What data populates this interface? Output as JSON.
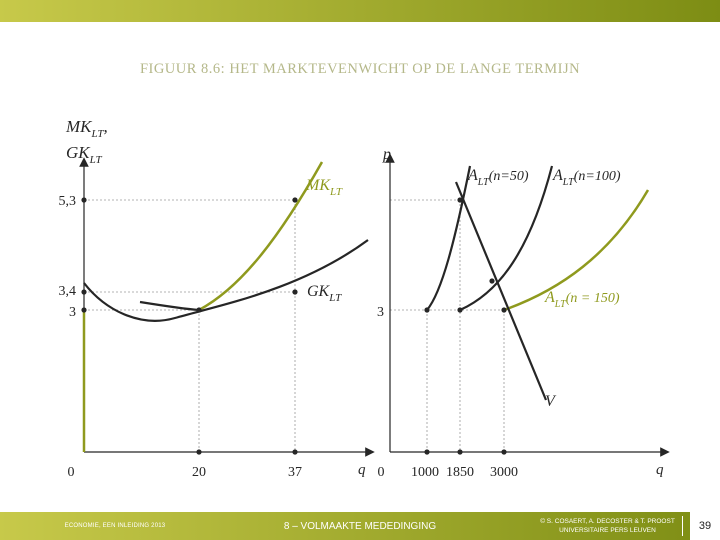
{
  "colors": {
    "accent": "#8f9a1e",
    "title": "#b5b88a",
    "curve_dark": "#262626",
    "footer_gradient_start": "#c7c94a",
    "footer_gradient_end": "#7d8d14"
  },
  "slide": {
    "title": "FIGUUR 8.6: HET MARKTEVENWICHT OP DE LANGE TERMIJN",
    "page_number": "39"
  },
  "footer": {
    "book": "ECONOMIE, EEN INLEIDING 2013",
    "chapter": "8 – VOLMAAKTE MEDEDINGING",
    "credits_line1": "© S. COSAERT, A. DECOSTER & T. PROOST",
    "credits_line2": "UNIVERSITAIRE PERS LEUVEN"
  },
  "left_panel": {
    "y_axis_label_top": "MK",
    "y_axis_label_top_sub": "LT",
    "y_axis_label_comma": ",",
    "y_axis_label_bottom": "GK",
    "y_axis_label_bottom_sub": "LT",
    "x_axis_label": "q",
    "origin_label": "0",
    "y_ticks": [
      "5,3",
      "3,4",
      "3"
    ],
    "x_ticks": [
      "20",
      "37"
    ],
    "mk_curve_label": "MK",
    "mk_curve_label_sub": "LT",
    "gk_curve_label": "GK",
    "gk_curve_label_sub": "LT"
  },
  "right_panel": {
    "y_axis_label": "p",
    "x_axis_label": "q",
    "origin_label": "0",
    "y_tick": "3",
    "x_ticks": [
      "1000",
      "1850",
      "3000"
    ],
    "supply_50_label": "A",
    "supply_50_sub": "LT",
    "supply_50_n": "(n=50)",
    "supply_100_label": "A",
    "supply_100_sub": "LT",
    "supply_100_n": "(n=100)",
    "supply_150_label": "A",
    "supply_150_sub": "LT",
    "supply_150_n": "(n = 150)",
    "demand_label": "V"
  }
}
